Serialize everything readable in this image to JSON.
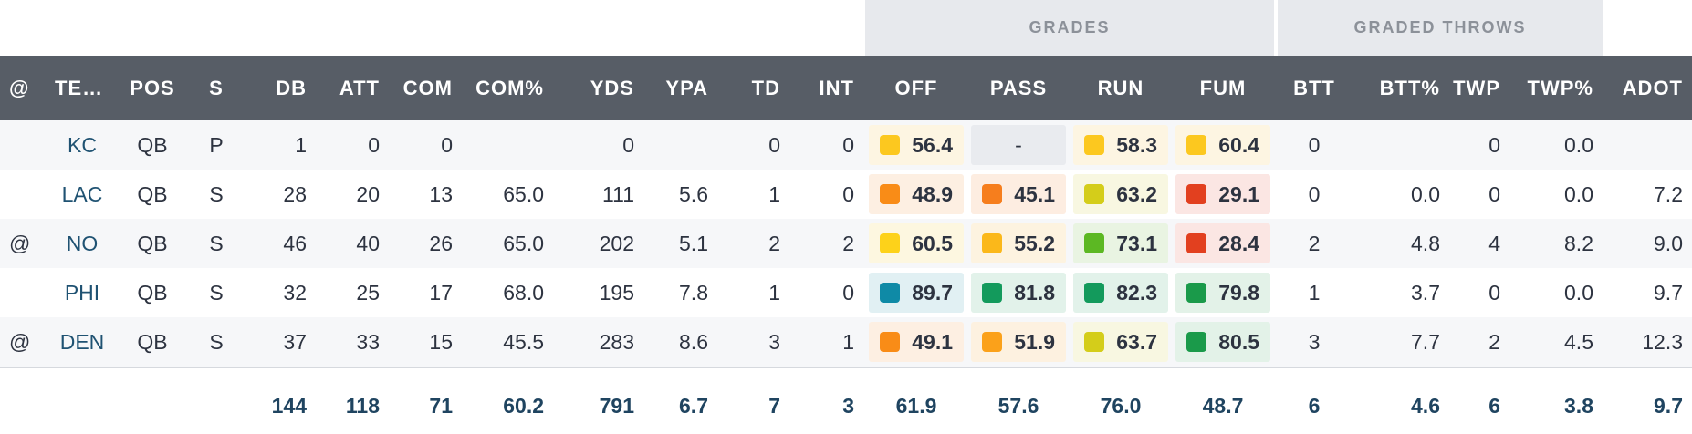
{
  "groups": {
    "grades": "GRADES",
    "graded_throws": "GRADED THROWS"
  },
  "columns": {
    "at": "@",
    "team": "TE…",
    "pos": "POS",
    "s": "S",
    "db": "DB",
    "att": "ATT",
    "com": "COM",
    "com_pct": "COM%",
    "yds": "YDS",
    "ypa": "YPA",
    "td": "TD",
    "int": "INT",
    "off": "OFF",
    "pass": "PASS",
    "run": "RUN",
    "fum": "FUM",
    "btt": "BTT",
    "btt_pct": "BTT%",
    "twp": "TWP",
    "twp_pct": "TWP%",
    "adot": "ADOT"
  },
  "rows": [
    {
      "at": "",
      "team": "KC",
      "pos": "QB",
      "s": "P",
      "db": "1",
      "att": "0",
      "com": "0",
      "com_pct": "",
      "yds": "0",
      "ypa": "",
      "td": "0",
      "int": "0",
      "off": {
        "v": "56.4",
        "c": "#fcc81f",
        "bg": "#fdf5e2"
      },
      "pass": {
        "v": "-",
        "c": "",
        "bg": ""
      },
      "run": {
        "v": "58.3",
        "c": "#fcc81f",
        "bg": "#fdf5e2"
      },
      "fum": {
        "v": "60.4",
        "c": "#fcc81f",
        "bg": "#fdf5e2"
      },
      "btt": "0",
      "btt_pct": "",
      "twp": "0",
      "twp_pct": "0.0",
      "adot": ""
    },
    {
      "at": "",
      "team": "LAC",
      "pos": "QB",
      "s": "S",
      "db": "28",
      "att": "20",
      "com": "13",
      "com_pct": "65.0",
      "yds": "111",
      "ypa": "5.6",
      "td": "1",
      "int": "0",
      "off": {
        "v": "48.9",
        "c": "#f98c17",
        "bg": "#fdefe2"
      },
      "pass": {
        "v": "45.1",
        "c": "#f67e1d",
        "bg": "#fdede1"
      },
      "run": {
        "v": "63.2",
        "c": "#d4cd1a",
        "bg": "#f8f7e1"
      },
      "fum": {
        "v": "29.1",
        "c": "#e2401f",
        "bg": "#fbe6e3"
      },
      "btt": "0",
      "btt_pct": "0.0",
      "twp": "0",
      "twp_pct": "0.0",
      "adot": "7.2"
    },
    {
      "at": "@",
      "team": "NO",
      "pos": "QB",
      "s": "S",
      "db": "46",
      "att": "40",
      "com": "26",
      "com_pct": "65.0",
      "yds": "202",
      "ypa": "5.1",
      "td": "2",
      "int": "2",
      "off": {
        "v": "60.5",
        "c": "#fdd21a",
        "bg": "#fdf7e0"
      },
      "pass": {
        "v": "55.2",
        "c": "#fbb81a",
        "bg": "#fdf3e0"
      },
      "run": {
        "v": "73.1",
        "c": "#5cb823",
        "bg": "#e9f4e2"
      },
      "fum": {
        "v": "28.4",
        "c": "#e2401f",
        "bg": "#fbe6e3"
      },
      "btt": "2",
      "btt_pct": "4.8",
      "twp": "4",
      "twp_pct": "8.2",
      "adot": "9.0"
    },
    {
      "at": "",
      "team": "PHI",
      "pos": "QB",
      "s": "S",
      "db": "32",
      "att": "25",
      "com": "17",
      "com_pct": "68.0",
      "yds": "195",
      "ypa": "7.8",
      "td": "1",
      "int": "0",
      "off": {
        "v": "89.7",
        "c": "#0f8aa6",
        "bg": "#e1f0f3"
      },
      "pass": {
        "v": "81.8",
        "c": "#139a5c",
        "bg": "#e2f2ea"
      },
      "run": {
        "v": "82.3",
        "c": "#139a5c",
        "bg": "#e2f2ea"
      },
      "fum": {
        "v": "79.8",
        "c": "#1a9a4a",
        "bg": "#e3f2e8"
      },
      "btt": "1",
      "btt_pct": "3.7",
      "twp": "0",
      "twp_pct": "0.0",
      "adot": "9.7"
    },
    {
      "at": "@",
      "team": "DEN",
      "pos": "QB",
      "s": "S",
      "db": "37",
      "att": "33",
      "com": "15",
      "com_pct": "45.5",
      "yds": "283",
      "ypa": "8.6",
      "td": "3",
      "int": "1",
      "off": {
        "v": "49.1",
        "c": "#f98c17",
        "bg": "#fdefe2"
      },
      "pass": {
        "v": "51.9",
        "c": "#fba11a",
        "bg": "#fdf1e0"
      },
      "run": {
        "v": "63.7",
        "c": "#d4cd1a",
        "bg": "#f8f7e1"
      },
      "fum": {
        "v": "80.5",
        "c": "#1a9a4a",
        "bg": "#e3f2e8"
      },
      "btt": "3",
      "btt_pct": "7.7",
      "twp": "2",
      "twp_pct": "4.5",
      "adot": "12.3"
    }
  ],
  "totals": {
    "db": "144",
    "att": "118",
    "com": "71",
    "com_pct": "60.2",
    "yds": "791",
    "ypa": "6.7",
    "td": "7",
    "int": "3",
    "off": "61.9",
    "pass": "57.6",
    "run": "76.0",
    "fum": "48.7",
    "btt": "6",
    "btt_pct": "4.6",
    "twp": "6",
    "twp_pct": "3.8",
    "adot": "9.7"
  }
}
